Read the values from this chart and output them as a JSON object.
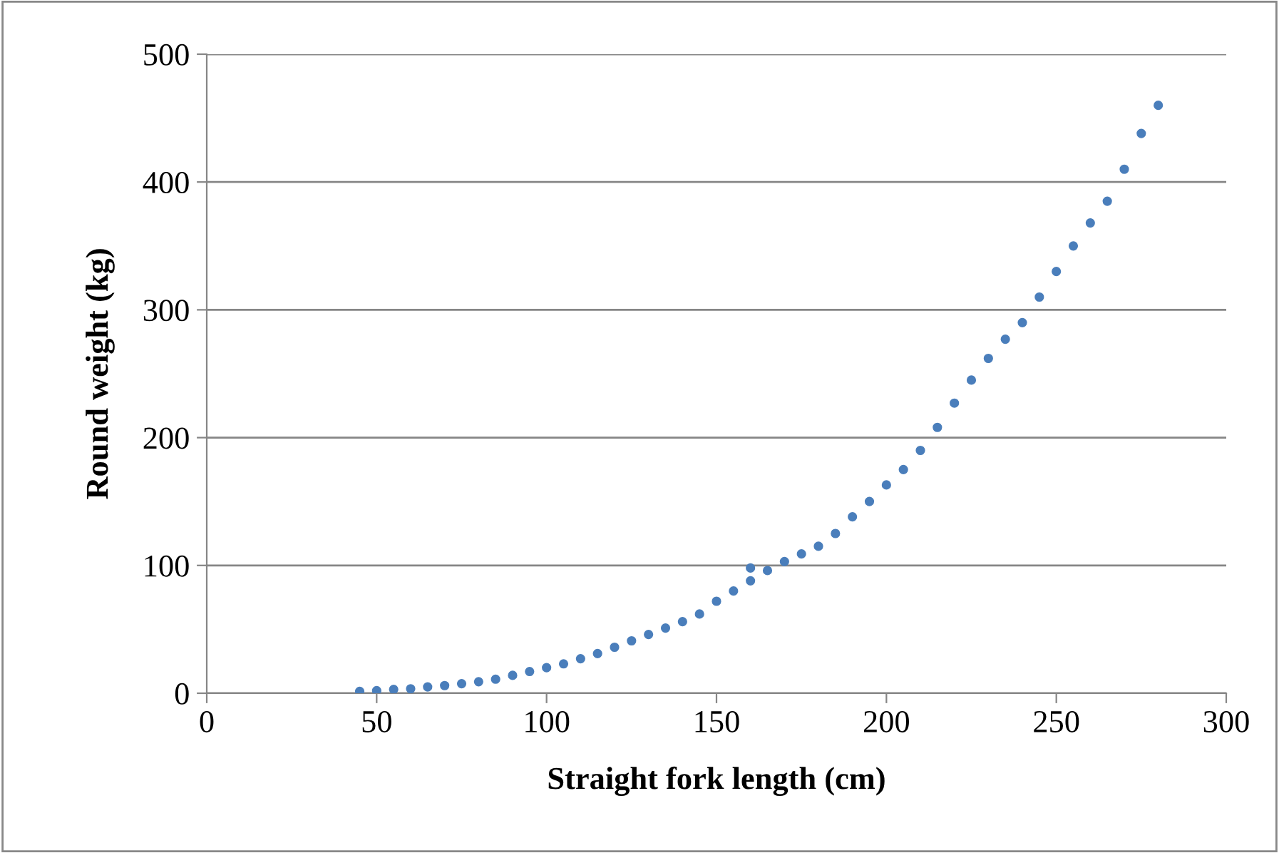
{
  "chart_data": {
    "type": "scatter",
    "xlabel": "Straight fork length (cm)",
    "ylabel": "Round weight (kg)",
    "x": [
      45,
      50,
      55,
      60,
      65,
      70,
      75,
      80,
      85,
      90,
      95,
      100,
      105,
      110,
      115,
      120,
      125,
      130,
      135,
      140,
      145,
      150,
      155,
      160,
      160,
      165,
      170,
      175,
      180,
      185,
      190,
      195,
      200,
      205,
      210,
      215,
      220,
      225,
      230,
      235,
      240,
      245,
      250,
      255,
      260,
      265,
      270,
      275,
      280
    ],
    "series": [
      {
        "color": "#4a7ebb",
        "values": [
          1.5,
          2,
          3,
          3.5,
          5,
          6,
          7.5,
          9,
          11,
          14,
          17,
          20,
          23,
          27,
          31,
          36,
          41,
          46,
          51,
          56,
          62,
          72,
          80,
          88,
          98,
          96,
          103,
          109,
          115,
          125,
          138,
          150,
          163,
          175,
          190,
          208,
          227,
          245,
          262,
          277,
          290,
          310,
          330,
          350,
          368,
          385,
          410,
          438,
          460
        ]
      }
    ],
    "xlim": [
      0,
      300
    ],
    "xticks": [
      0,
      50,
      100,
      150,
      200,
      250,
      300
    ],
    "ylim": [
      0,
      500
    ],
    "yticks": [
      0,
      100,
      200,
      300,
      400,
      500
    ],
    "grid": "y",
    "marker": "circle"
  }
}
